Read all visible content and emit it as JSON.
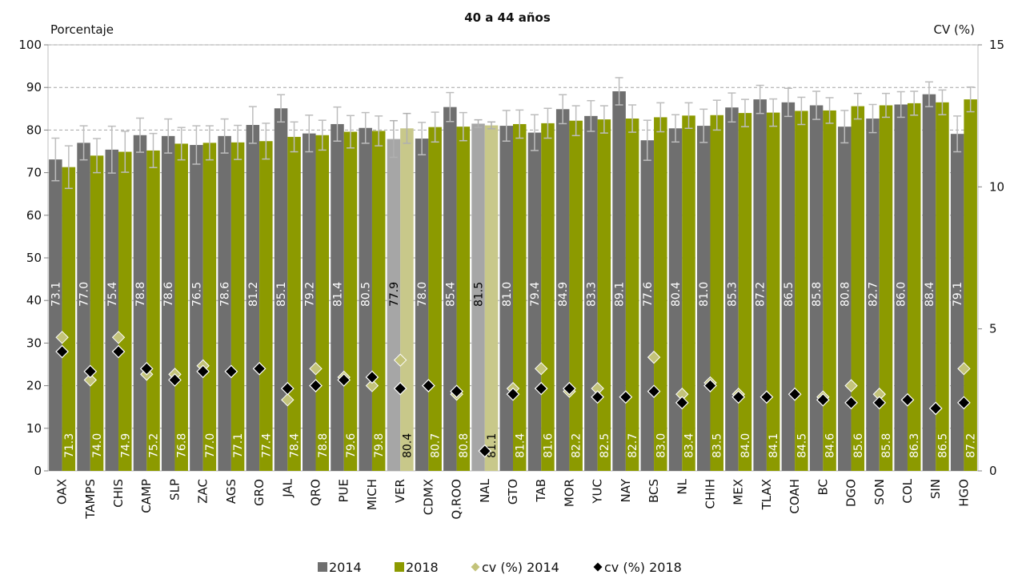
{
  "chart_data": {
    "type": "bar",
    "title": "40 a 44 años",
    "ylabel": "Porcentaje",
    "y2label": "CV (%)",
    "ylim": [
      0,
      100
    ],
    "y2lim": [
      0,
      15
    ],
    "yticks": [
      "0",
      "10",
      "20",
      "30",
      "40",
      "50",
      "60",
      "70",
      "80",
      "90",
      "100"
    ],
    "y2ticks": [
      "0",
      "5",
      "10",
      "15"
    ],
    "grid": "horizontal dashed",
    "legend_position": "bottom",
    "categories": [
      "OAX",
      "TAMPS",
      "CHIS",
      "CAMP",
      "SLP",
      "ZAC",
      "AGS",
      "GRO",
      "JAL",
      "QRO",
      "PUE",
      "MICH",
      "VER",
      "CDMX",
      "Q.ROO",
      "NAL",
      "GTO",
      "TAB",
      "MOR",
      "YUC",
      "NAY",
      "BCS",
      "NL",
      "CHIH",
      "MEX",
      "TLAX",
      "COAH",
      "BC",
      "DGO",
      "SON",
      "COL",
      "SIN",
      "HGO"
    ],
    "highlighted": [
      "VER",
      "NAL"
    ],
    "series": [
      {
        "name": "2014",
        "type": "bar",
        "color": "#6f6f6f",
        "highlight_color": "#a6a6a6",
        "values": [
          73.1,
          77.0,
          75.4,
          78.8,
          78.6,
          76.5,
          78.6,
          81.2,
          85.1,
          79.2,
          81.4,
          80.5,
          77.9,
          78.0,
          85.4,
          81.5,
          81.0,
          79.4,
          84.9,
          83.3,
          89.1,
          77.6,
          80.4,
          81.0,
          85.3,
          87.2,
          86.5,
          85.8,
          80.8,
          82.7,
          86.0,
          88.4,
          79.1
        ],
        "labels": [
          "73.1",
          "77.0",
          "75.4",
          "78.8",
          "78.6",
          "76.5",
          "78.6",
          "81.2",
          "85.1",
          "79.2",
          "81.4",
          "80.5",
          "77.9",
          "78.0",
          "85.4",
          "81.5",
          "81.0",
          "79.4",
          "84.9",
          "83.3",
          "89.1",
          "77.6",
          "80.4",
          "81.0",
          "85.3",
          "87.2",
          "86.5",
          "85.8",
          "80.8",
          "82.7",
          "86.0",
          "88.4",
          "79.1"
        ],
        "error": [
          5.0,
          4.0,
          5.5,
          4.0,
          4.0,
          4.5,
          4.0,
          4.3,
          3.2,
          4.3,
          4.0,
          3.6,
          4.3,
          3.8,
          3.4,
          0.9,
          3.6,
          4.2,
          3.4,
          3.6,
          3.2,
          4.7,
          3.2,
          3.9,
          3.4,
          3.3,
          3.3,
          3.3,
          3.8,
          3.3,
          3.0,
          2.9,
          4.2
        ]
      },
      {
        "name": "2018",
        "type": "bar",
        "color": "#8c9a00",
        "highlight_color": "#c8c88a",
        "values": [
          71.3,
          74.0,
          74.9,
          75.2,
          76.8,
          77.0,
          77.1,
          77.4,
          78.4,
          78.8,
          79.6,
          79.8,
          80.4,
          80.7,
          80.8,
          81.1,
          81.4,
          81.6,
          82.2,
          82.5,
          82.7,
          83.0,
          83.4,
          83.5,
          84.0,
          84.1,
          84.5,
          84.6,
          85.6,
          85.8,
          86.3,
          86.5,
          87.2
        ],
        "labels": [
          "71.3",
          "74.0",
          "74.9",
          "75.2",
          "76.8",
          "77.0",
          "77.1",
          "77.4",
          "78.4",
          "78.8",
          "79.6",
          "79.8",
          "80.4",
          "80.7",
          "80.8",
          "81.1",
          "81.4",
          "81.6",
          "82.2",
          "82.5",
          "82.7",
          "83.0",
          "83.4",
          "83.5",
          "84.0",
          "84.1",
          "84.5",
          "84.6",
          "85.6",
          "85.8",
          "86.3",
          "86.5",
          "87.2"
        ],
        "error": [
          5.0,
          4.0,
          4.8,
          4.0,
          3.8,
          4.0,
          4.0,
          4.2,
          3.5,
          3.5,
          3.8,
          3.5,
          3.5,
          3.5,
          3.3,
          0.8,
          3.3,
          3.5,
          3.5,
          3.2,
          3.2,
          3.4,
          3.0,
          3.5,
          3.2,
          3.2,
          3.2,
          3.0,
          3.0,
          2.8,
          2.8,
          2.9,
          2.9
        ]
      },
      {
        "name": "cv (%) 2014",
        "type": "scatter",
        "marker": "diamond",
        "color": "#c3c37a",
        "axis": "right",
        "values": [
          4.7,
          3.2,
          4.7,
          3.4,
          3.4,
          3.7,
          3.5,
          3.6,
          2.5,
          3.6,
          3.3,
          3.0,
          3.9,
          3.0,
          2.7,
          null,
          2.9,
          3.6,
          2.8,
          2.9,
          2.6,
          4.0,
          2.7,
          3.1,
          2.7,
          2.6,
          2.7,
          2.6,
          3.0,
          2.7,
          2.5,
          2.2,
          3.6
        ]
      },
      {
        "name": "cv (%) 2018",
        "type": "scatter",
        "marker": "diamond",
        "color": "#000000",
        "axis": "right",
        "values": [
          4.2,
          3.5,
          4.2,
          3.6,
          3.2,
          3.5,
          3.5,
          3.6,
          2.9,
          3.0,
          3.2,
          3.3,
          2.9,
          3.0,
          2.8,
          0.7,
          2.7,
          2.9,
          2.9,
          2.6,
          2.6,
          2.8,
          2.4,
          3.0,
          2.6,
          2.6,
          2.7,
          2.5,
          2.4,
          2.4,
          2.5,
          2.2,
          2.4
        ]
      }
    ],
    "legend": [
      {
        "label": "2014",
        "marker": "square",
        "color": "#6f6f6f"
      },
      {
        "label": "2018",
        "marker": "square",
        "color": "#8c9a00"
      },
      {
        "label": "cv (%) 2014",
        "marker": "diamond",
        "color": "#c3c37a"
      },
      {
        "label": "cv (%) 2018",
        "marker": "diamond",
        "color": "#000000"
      }
    ]
  }
}
